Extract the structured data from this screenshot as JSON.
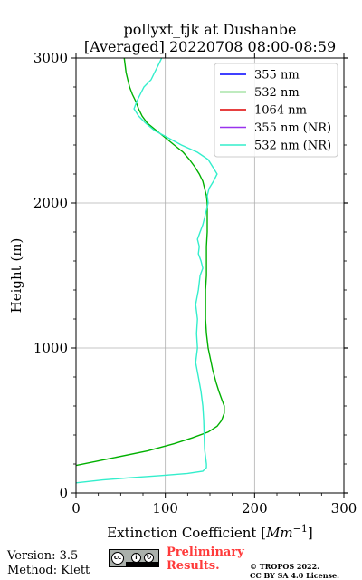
{
  "chart_data": {
    "type": "line",
    "title": "pollyxt_tjk at Dushanbe",
    "subtitle": "[Averaged] 20220708 08:00-08:59",
    "xlabel": "Extinction Coefficient [",
    "xlabel_unit": "Mm",
    "xlabel_exp": "−1",
    "xlabel_end": "]",
    "ylabel": "Height (m)",
    "xlim": [
      0,
      300
    ],
    "ylim": [
      0,
      3000
    ],
    "xticks": [
      "0",
      "100",
      "200",
      "300"
    ],
    "yticks": [
      "0",
      "1000",
      "2000",
      "3000"
    ],
    "grid": true,
    "legend_position": "top-right",
    "series": [
      {
        "name": "355 nm",
        "color": "#0000ff",
        "points": []
      },
      {
        "name": "532 nm",
        "color": "#00b000",
        "points": [
          [
            0,
            190
          ],
          [
            40,
            240
          ],
          [
            80,
            290
          ],
          [
            110,
            340
          ],
          [
            130,
            380
          ],
          [
            148,
            420
          ],
          [
            158,
            460
          ],
          [
            163,
            500
          ],
          [
            166,
            550
          ],
          [
            166,
            600
          ],
          [
            163,
            650
          ],
          [
            160,
            700
          ],
          [
            157,
            760
          ],
          [
            153,
            850
          ],
          [
            148,
            1000
          ],
          [
            146,
            1100
          ],
          [
            145,
            1200
          ],
          [
            145,
            1300
          ],
          [
            145,
            1400
          ],
          [
            146,
            1500
          ],
          [
            146,
            1600
          ],
          [
            146,
            1700
          ],
          [
            147,
            1800
          ],
          [
            147,
            1900
          ],
          [
            147,
            2000
          ],
          [
            146,
            2050
          ],
          [
            144,
            2100
          ],
          [
            142,
            2150
          ],
          [
            138,
            2200
          ],
          [
            133,
            2250
          ],
          [
            127,
            2300
          ],
          [
            120,
            2350
          ],
          [
            110,
            2400
          ],
          [
            100,
            2450
          ],
          [
            90,
            2500
          ],
          [
            80,
            2550
          ],
          [
            74,
            2600
          ],
          [
            70,
            2650
          ],
          [
            67,
            2700
          ],
          [
            63,
            2750
          ],
          [
            60,
            2800
          ],
          [
            58,
            2850
          ],
          [
            56,
            2900
          ],
          [
            55,
            2950
          ],
          [
            54,
            3000
          ]
        ]
      },
      {
        "name": "1064 nm",
        "color": "#dd0000",
        "points": []
      },
      {
        "name": "355 nm (NR)",
        "color": "#9933ee",
        "points": []
      },
      {
        "name": "532 nm (NR)",
        "color": "#33eecc",
        "points": [
          [
            0,
            70
          ],
          [
            30,
            90
          ],
          [
            60,
            105
          ],
          [
            95,
            120
          ],
          [
            125,
            135
          ],
          [
            142,
            150
          ],
          [
            146,
            175
          ],
          [
            146,
            200
          ],
          [
            144,
            300
          ],
          [
            143,
            500
          ],
          [
            142,
            600
          ],
          [
            140,
            700
          ],
          [
            137,
            800
          ],
          [
            134,
            900
          ],
          [
            136,
            1000
          ],
          [
            135,
            1100
          ],
          [
            136,
            1200
          ],
          [
            134,
            1300
          ],
          [
            137,
            1400
          ],
          [
            139,
            1500
          ],
          [
            142,
            1550
          ],
          [
            140,
            1600
          ],
          [
            137,
            1650
          ],
          [
            138,
            1700
          ],
          [
            136,
            1750
          ],
          [
            139,
            1800
          ],
          [
            142,
            1850
          ],
          [
            144,
            1900
          ],
          [
            146,
            1950
          ],
          [
            148,
            2000
          ],
          [
            147,
            2050
          ],
          [
            149,
            2100
          ],
          [
            154,
            2150
          ],
          [
            158,
            2200
          ],
          [
            153,
            2250
          ],
          [
            148,
            2300
          ],
          [
            136,
            2350
          ],
          [
            118,
            2400
          ],
          [
            103,
            2450
          ],
          [
            88,
            2500
          ],
          [
            78,
            2550
          ],
          [
            70,
            2600
          ],
          [
            65,
            2650
          ],
          [
            68,
            2700
          ],
          [
            72,
            2750
          ],
          [
            76,
            2800
          ],
          [
            84,
            2850
          ],
          [
            88,
            2900
          ],
          [
            92,
            2950
          ],
          [
            96,
            3000
          ]
        ]
      }
    ]
  },
  "footer": {
    "version": "Version: 3.5",
    "method": "Method: Klett",
    "preliminary_line1": "Preliminary",
    "preliminary_line2": "Results.",
    "copyright_line1": "© TROPOS 2022.",
    "copyright_line2": "CC BY SA 4.0 License."
  }
}
